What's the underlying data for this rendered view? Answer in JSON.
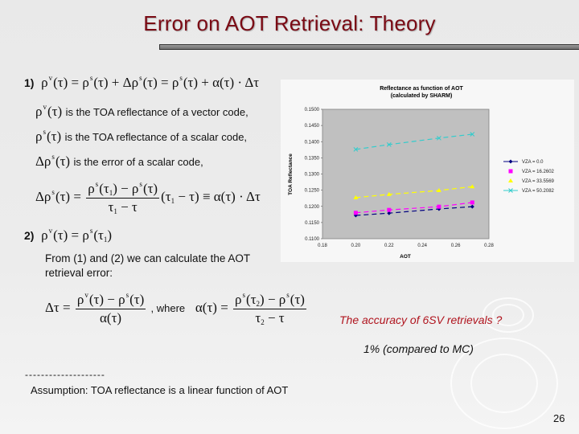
{
  "slide": {
    "title": "Error on AOT Retrieval: Theory",
    "page_number": "26",
    "colors": {
      "title": "#7a0a14",
      "question": "#b0141e",
      "background": "#e9e9e9"
    }
  },
  "section1": {
    "label": "1)",
    "equation": "ρ^v(τ) = ρ^s(τ) + Δρ^s(τ) = ρ^s(τ) + α(τ)·Δτ",
    "definitions": [
      {
        "symbol": "ρv(τ)",
        "text": "is the TOA reflectance of a vector code,"
      },
      {
        "symbol": "ρs(τ)",
        "text": "is the TOA reflectance of a scalar code,"
      },
      {
        "symbol": "Δρs(τ)",
        "text": "is the error of a scalar code,"
      }
    ],
    "delta_equation": "Δρ^s(τ) = [ρ^s(τ1) − ρ^s(τ)] / (τ1 − τ) · (τ1 − τ) ≡ α(τ)·Δτ"
  },
  "section2": {
    "label": "2)",
    "equation": "ρ^v(τ) = ρ^s(τ1)",
    "text_line1": "From (1) and (2) we can calculate the AOT",
    "text_line2": "retrieval error:",
    "retrieval_equation": "Δτ = [ρ^v(τ) − ρ^s(τ)] / α(τ)",
    "where": ", where",
    "alpha_equation": "α(τ) = [ρ^s(τ2) − ρ^s(τ)] / (τ2 − τ)"
  },
  "notes": {
    "question": "The accuracy of 6SV retrievals ?",
    "answer": "1% (compared to MC)",
    "separator": "--------------------",
    "assumption": "Assumption: TOA reflectance is a linear function of AOT"
  },
  "chart_data": {
    "type": "line",
    "title": "Reflectance as function of AOT",
    "subtitle": "(calculated by SHARM)",
    "xlabel": "AOT",
    "ylabel": "TOA Reflectance",
    "xlim": [
      0.18,
      0.28
    ],
    "ylim": [
      0.11,
      0.15
    ],
    "x_ticks": [
      "0.18",
      "0.20",
      "0.22",
      "0.24",
      "0.26",
      "0.28"
    ],
    "y_ticks": [
      "0.1100",
      "0.1150",
      "0.1200",
      "0.1250",
      "0.1300",
      "0.1350",
      "0.1400",
      "0.1450",
      "0.1500"
    ],
    "grid": false,
    "plot_background": "#c0c0c0",
    "legend_position": "right",
    "x": [
      0.2,
      0.22,
      0.25,
      0.27
    ],
    "series": [
      {
        "name": "VZA = 0.0",
        "color": "#000080",
        "marker": "diamond",
        "values": [
          0.1172,
          0.1179,
          0.1192,
          0.1199
        ]
      },
      {
        "name": "VZA = 16.2602",
        "color": "#ff00ff",
        "marker": "square",
        "values": [
          0.118,
          0.1189,
          0.1199,
          0.1212
        ]
      },
      {
        "name": "VZA = 33.5569",
        "color": "#ffff00",
        "marker": "triangle",
        "values": [
          0.1227,
          0.1237,
          0.1249,
          0.1261
        ]
      },
      {
        "name": "VZA = 50.2082",
        "color": "#33cccc",
        "marker": "x",
        "values": [
          0.1376,
          0.1391,
          0.1411,
          0.1423
        ]
      }
    ]
  }
}
